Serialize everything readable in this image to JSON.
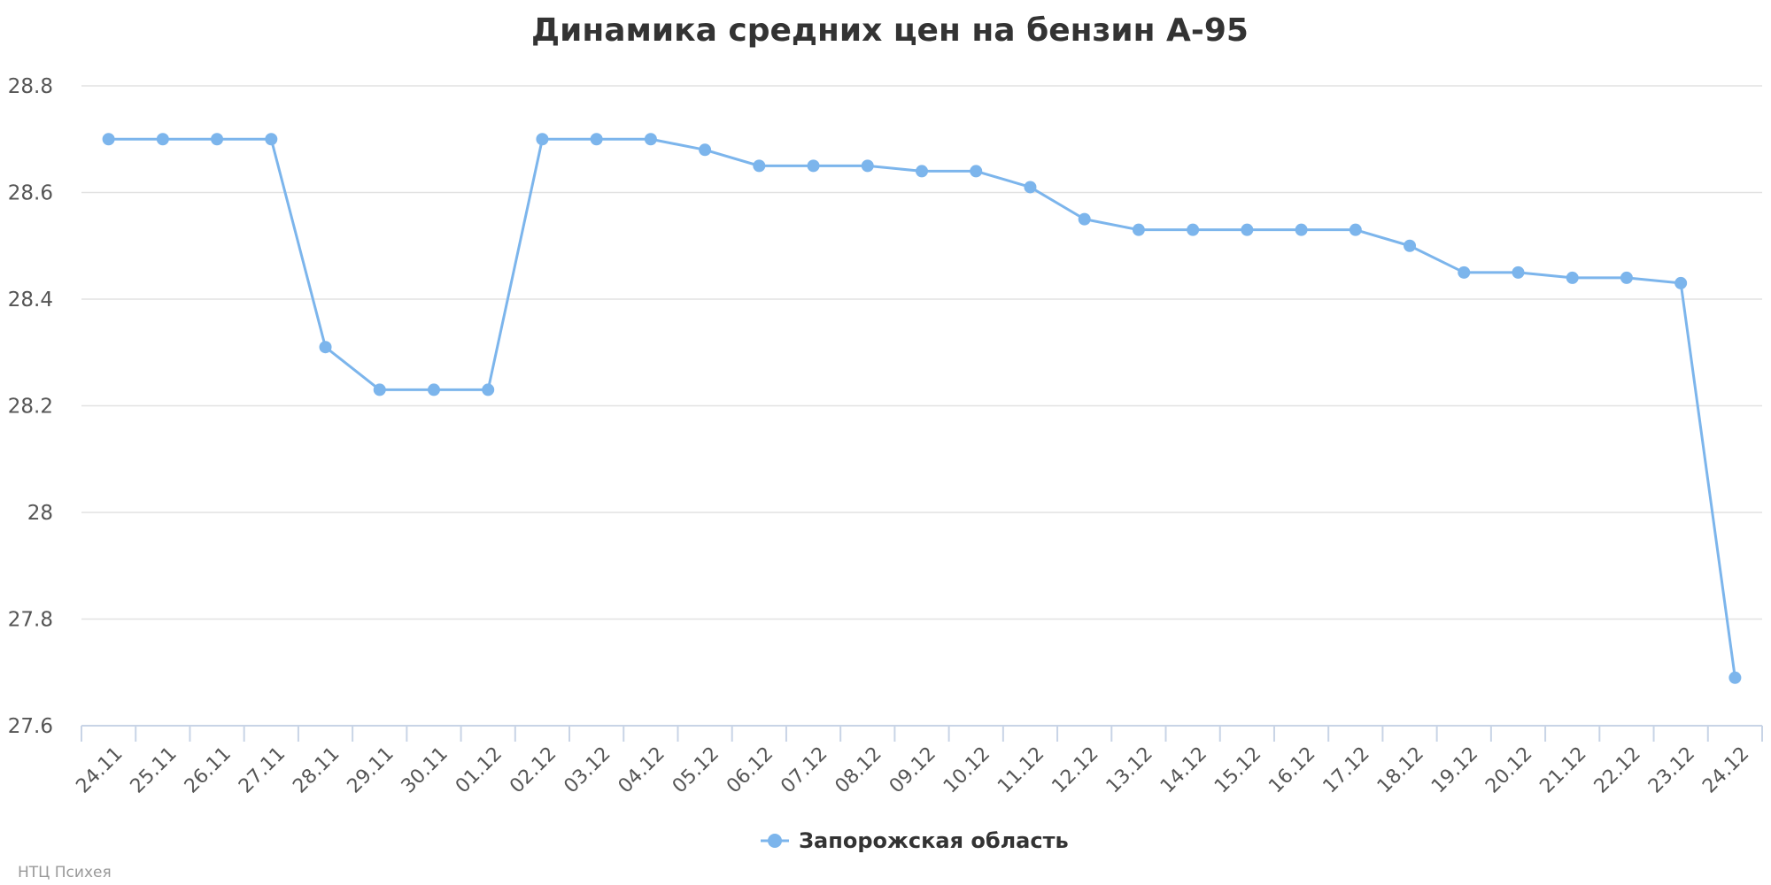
{
  "chart_data": {
    "type": "line",
    "title": "Динамика средних цен на бензин А-95",
    "xlabel": "",
    "ylabel": "",
    "categories": [
      "24.11",
      "25.11",
      "26.11",
      "27.11",
      "28.11",
      "29.11",
      "30.11",
      "01.12",
      "02.12",
      "03.12",
      "04.12",
      "05.12",
      "06.12",
      "07.12",
      "08.12",
      "09.12",
      "10.12",
      "11.12",
      "12.12",
      "13.12",
      "14.12",
      "15.12",
      "16.12",
      "17.12",
      "18.12",
      "19.12",
      "20.12",
      "21.12",
      "22.12",
      "23.12",
      "24.12"
    ],
    "series": [
      {
        "name": "Запорожская область",
        "color": "#7cb5ec",
        "values": [
          28.7,
          28.7,
          28.7,
          28.7,
          28.31,
          28.23,
          28.23,
          28.23,
          28.7,
          28.7,
          28.7,
          28.68,
          28.65,
          28.65,
          28.65,
          28.64,
          28.64,
          28.61,
          28.55,
          28.53,
          28.53,
          28.53,
          28.53,
          28.53,
          28.5,
          28.45,
          28.45,
          28.44,
          28.44,
          28.43,
          27.69
        ]
      }
    ],
    "ylim": [
      27.6,
      28.8
    ],
    "yticks": [
      "27.6",
      "27.8",
      "28",
      "28.2",
      "28.4",
      "28.6",
      "28.8"
    ],
    "grid": true,
    "legend_position": "bottom-center"
  },
  "credits": "НТЦ Психея"
}
